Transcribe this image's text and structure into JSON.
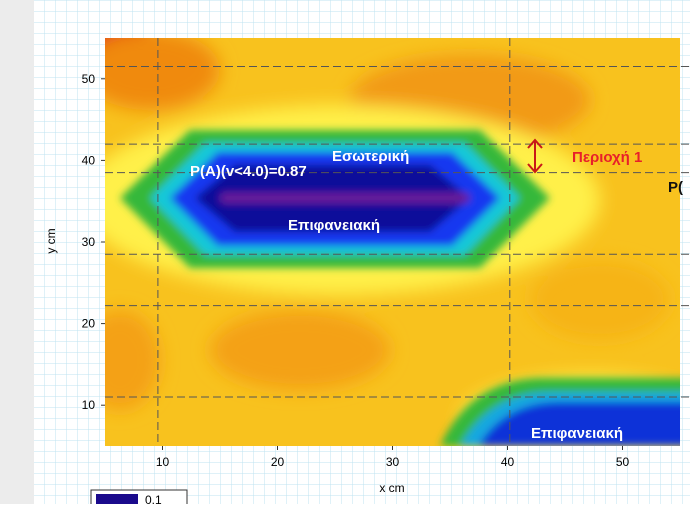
{
  "chart_data": {
    "type": "contour",
    "xlabel": "x cm",
    "ylabel": "y cm",
    "xlim": [
      5,
      55
    ],
    "ylim": [
      5,
      55
    ],
    "xticks": [
      10,
      20,
      30,
      40,
      50
    ],
    "yticks": [
      10,
      20,
      30,
      40,
      50
    ],
    "vlines": [
      9.6,
      40.2
    ],
    "hlines": [
      51.5,
      42,
      38.5,
      28.5,
      22.2,
      11
    ],
    "annotations": {
      "probability": "P(A)(v<4.0)=0.87",
      "inner": "Εσωτερική",
      "surface_top": "Επιφανειακή",
      "surface_bottom": "Επιφανειακή",
      "region": "Περιοχή  1",
      "cut": "P("
    },
    "legend": {
      "label": "0.1",
      "color": "#1a0a8c"
    }
  }
}
